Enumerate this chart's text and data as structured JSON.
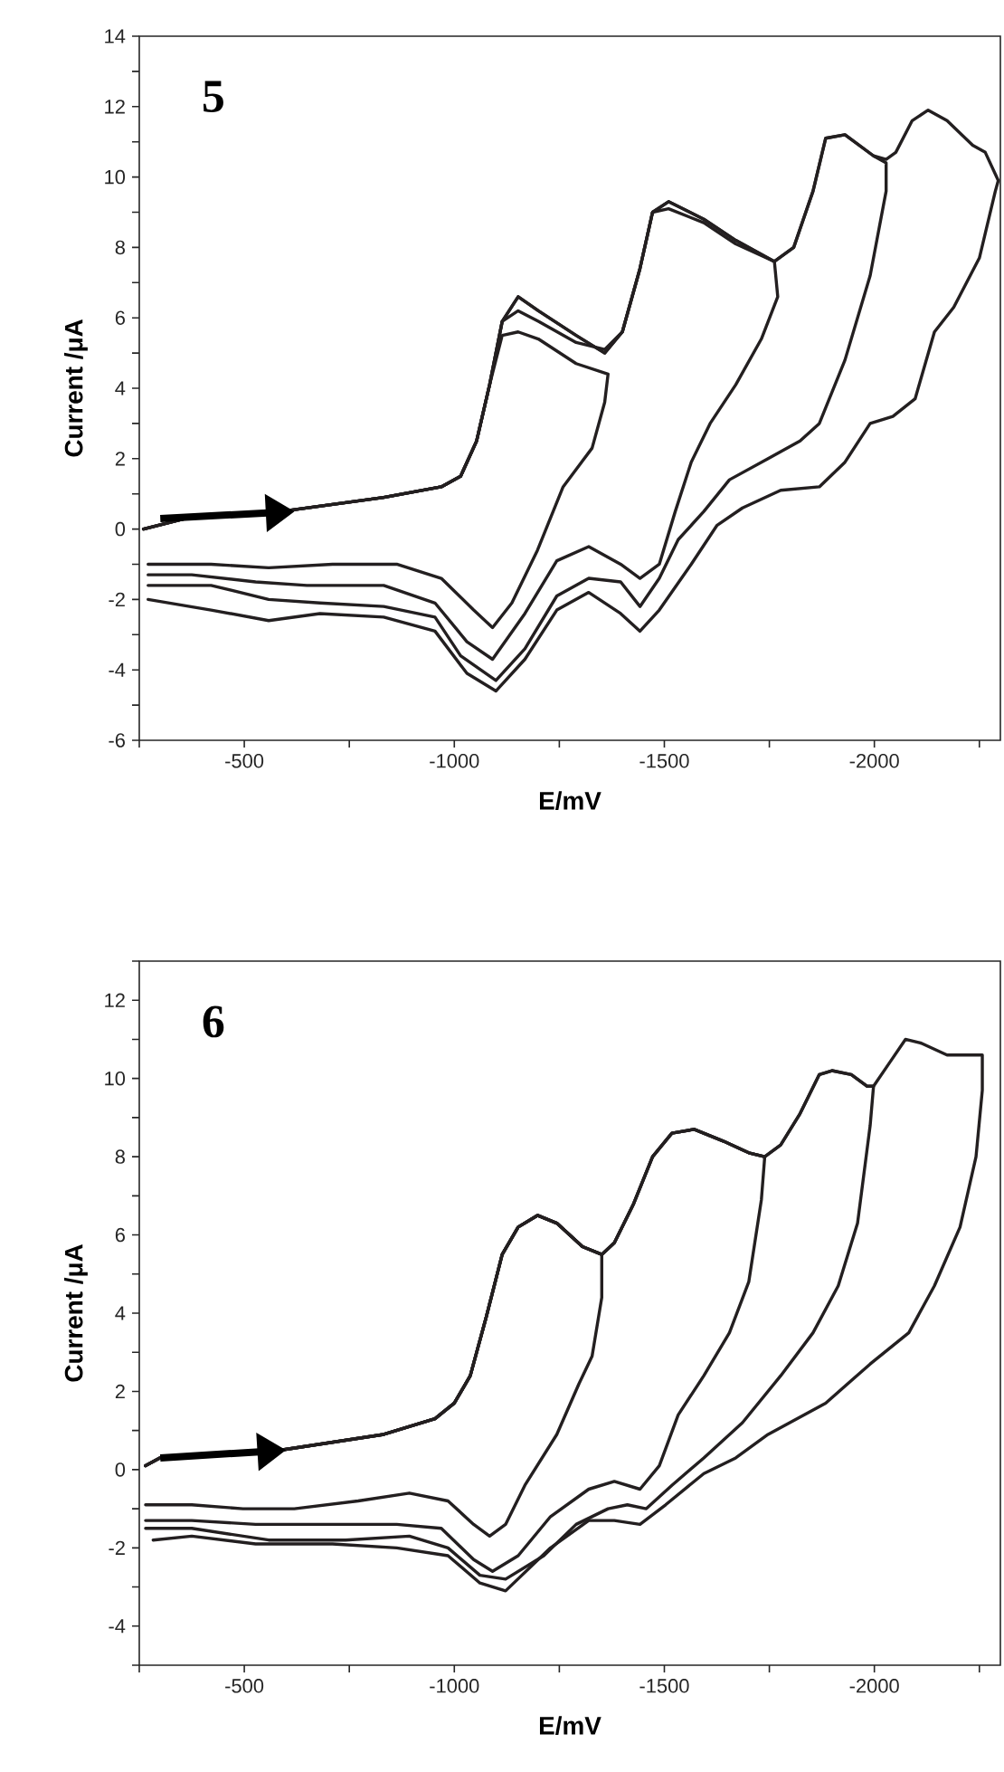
{
  "chart_data": [
    {
      "type": "line",
      "title": "5",
      "xlabel": "E/mV",
      "ylabel": "Current /μA",
      "xlim": [
        -250,
        -2300
      ],
      "ylim": [
        -6,
        14
      ],
      "xticks": [
        {
          "value": -250,
          "label": null
        },
        -500,
        {
          "value": -750,
          "label": null
        },
        -1000,
        {
          "value": -1250,
          "label": null
        },
        -1500,
        {
          "value": -1750,
          "label": null
        },
        -2000,
        {
          "value": -2250,
          "label": null
        }
      ],
      "yticks": [
        -6,
        {
          "value": -5,
          "label": null
        },
        -4,
        {
          "value": -3,
          "label": null
        },
        -2,
        {
          "value": -1,
          "label": null
        },
        0,
        {
          "value": 1,
          "label": null
        },
        2,
        {
          "value": 3,
          "label": null
        },
        4,
        {
          "value": 5,
          "label": null
        },
        6,
        {
          "value": 7,
          "label": null
        },
        8,
        {
          "value": 9,
          "label": null
        },
        10,
        {
          "value": 11,
          "label": null
        },
        12,
        {
          "value": 13,
          "label": null
        },
        14
      ],
      "series": [
        {
          "color": "#231f20",
          "x": [
            -260,
            -360,
            -588,
            -832,
            -969,
            -1015,
            -1053,
            -1084,
            -1114,
            -1152,
            -1200,
            -1290,
            -1366,
            -1358,
            -1328,
            -1259,
            -1198,
            -1137,
            -1091,
            -1046,
            -969,
            -863,
            -710,
            -558,
            -421,
            -271
          ],
          "values": [
            0,
            0.3,
            0.5,
            0.9,
            1.2,
            1.5,
            2.5,
            4.1,
            5.5,
            5.6,
            5.4,
            4.7,
            4.4,
            3.6,
            2.3,
            1.2,
            -0.6,
            -2.1,
            -2.8,
            -2.3,
            -1.4,
            -1.0,
            -1.0,
            -1.1,
            -1.0,
            -1.0
          ]
        },
        {
          "color": "#231f20",
          "x": [
            -260,
            -360,
            -588,
            -832,
            -969,
            -1015,
            -1053,
            -1084,
            -1114,
            -1152,
            -1200,
            -1290,
            -1358,
            -1400,
            -1442,
            -1472,
            -1510,
            -1594,
            -1670,
            -1762,
            -1770,
            -1731,
            -1670,
            -1609,
            -1564,
            -1526,
            -1488,
            -1442,
            -1396,
            -1320,
            -1244,
            -1168,
            -1091,
            -1030,
            -954,
            -832,
            -649,
            -527,
            -375,
            -271
          ],
          "values": [
            0,
            0.3,
            0.5,
            0.9,
            1.2,
            1.5,
            2.5,
            4.1,
            5.9,
            6.2,
            5.9,
            5.3,
            5.1,
            5.6,
            7.4,
            9.0,
            9.1,
            8.7,
            8.1,
            7.6,
            6.6,
            5.4,
            4.1,
            3.0,
            1.9,
            0.5,
            -1.0,
            -1.4,
            -1.0,
            -0.5,
            -0.9,
            -2.4,
            -3.7,
            -3.2,
            -2.1,
            -1.6,
            -1.6,
            -1.5,
            -1.3,
            -1.3
          ]
        },
        {
          "color": "#231f20",
          "x": [
            -260,
            -360,
            -588,
            -832,
            -969,
            -1015,
            -1053,
            -1084,
            -1114,
            -1152,
            -1200,
            -1290,
            -1358,
            -1400,
            -1442,
            -1472,
            -1510,
            -1594,
            -1670,
            -1762,
            -1808,
            -1854,
            -1884,
            -1930,
            -1998,
            -2028,
            -2028,
            -1990,
            -1930,
            -1869,
            -1823,
            -1747,
            -1655,
            -1594,
            -1533,
            -1488,
            -1442,
            -1396,
            -1320,
            -1244,
            -1168,
            -1099,
            -1015,
            -954,
            -832,
            -680,
            -558,
            -421,
            -271
          ],
          "values": [
            0,
            0.3,
            0.5,
            0.9,
            1.2,
            1.5,
            2.5,
            4.1,
            5.9,
            6.6,
            6.2,
            5.5,
            5.0,
            5.6,
            7.4,
            9.0,
            9.3,
            8.8,
            8.2,
            7.6,
            8.0,
            9.6,
            11.1,
            11.2,
            10.6,
            10.4,
            9.6,
            7.2,
            4.8,
            3.0,
            2.5,
            2.0,
            1.4,
            0.5,
            -0.3,
            -1.4,
            -2.2,
            -1.5,
            -1.4,
            -1.9,
            -3.4,
            -4.3,
            -3.6,
            -2.5,
            -2.2,
            -2.1,
            -2.0,
            -1.6,
            -1.6
          ]
        },
        {
          "color": "#231f20",
          "x": [
            -260,
            -360,
            -588,
            -832,
            -969,
            -1015,
            -1053,
            -1084,
            -1114,
            -1152,
            -1200,
            -1290,
            -1358,
            -1400,
            -1442,
            -1472,
            -1510,
            -1594,
            -1670,
            -1762,
            -1808,
            -1854,
            -1884,
            -1930,
            -1998,
            -2028,
            -2051,
            -2090,
            -2128,
            -2173,
            -2234,
            -2264,
            -2295,
            -2288,
            -2250,
            -2189,
            -2143,
            -2097,
            -2044,
            -1990,
            -1930,
            -1869,
            -1777,
            -1686,
            -1625,
            -1564,
            -1488,
            -1442,
            -1396,
            -1320,
            -1244,
            -1168,
            -1099,
            -1030,
            -954,
            -832,
            -680,
            -558,
            -421,
            -271
          ],
          "values": [
            0,
            0.3,
            0.5,
            0.9,
            1.2,
            1.5,
            2.5,
            4.1,
            5.9,
            6.6,
            6.2,
            5.5,
            5.0,
            5.6,
            7.4,
            9.0,
            9.3,
            8.8,
            8.2,
            7.6,
            8.0,
            9.6,
            11.1,
            11.2,
            10.6,
            10.5,
            10.7,
            11.6,
            11.9,
            11.6,
            10.9,
            10.7,
            9.9,
            9.6,
            7.7,
            6.3,
            5.6,
            3.7,
            3.2,
            3.0,
            1.9,
            1.2,
            1.1,
            0.6,
            0.1,
            -1.0,
            -2.3,
            -2.9,
            -2.4,
            -1.8,
            -2.3,
            -3.7,
            -4.6,
            -4.1,
            -2.9,
            -2.5,
            -2.4,
            -2.6,
            -2.3,
            -2.0
          ]
        }
      ]
    },
    {
      "type": "line",
      "title": "6",
      "xlabel": "E/mV",
      "ylabel": "Current /μA",
      "xlim": [
        -250,
        -2300
      ],
      "ylim": [
        -5,
        13
      ],
      "xticks": [
        {
          "value": -250,
          "label": null
        },
        -500,
        {
          "value": -750,
          "label": null
        },
        -1000,
        {
          "value": -1250,
          "label": null
        },
        -1500,
        {
          "value": -1750,
          "label": null
        },
        -2000,
        {
          "value": -2250,
          "label": null
        }
      ],
      "yticks": [
        {
          "value": -5,
          "label": null
        },
        -4,
        {
          "value": -3,
          "label": null
        },
        -2,
        {
          "value": -1,
          "label": null
        },
        0,
        {
          "value": 1,
          "label": null
        },
        2,
        {
          "value": 3,
          "label": null
        },
        4,
        {
          "value": 5,
          "label": null
        },
        6,
        {
          "value": 7,
          "label": null
        },
        8,
        {
          "value": 9,
          "label": null
        },
        10,
        {
          "value": 11,
          "label": null
        },
        12,
        {
          "value": 13,
          "label": null
        }
      ],
      "series": [
        {
          "color": "#231f20",
          "x": [
            -265,
            -299,
            -588,
            -832,
            -954,
            -1000,
            -1038,
            -1076,
            -1114,
            -1152,
            -1198,
            -1244,
            -1305,
            -1351,
            -1351,
            -1328,
            -1297,
            -1244,
            -1168,
            -1122,
            -1084,
            -1046,
            -985,
            -893,
            -771,
            -619,
            -497,
            -375,
            -265
          ],
          "values": [
            0.1,
            0.3,
            0.5,
            0.9,
            1.3,
            1.7,
            2.4,
            3.9,
            5.5,
            6.2,
            6.5,
            6.3,
            5.7,
            5.5,
            4.4,
            2.9,
            2.2,
            0.9,
            -0.4,
            -1.4,
            -1.7,
            -1.4,
            -0.8,
            -0.6,
            -0.8,
            -1.0,
            -1.0,
            -0.9,
            -0.9
          ]
        },
        {
          "color": "#231f20",
          "x": [
            -265,
            -299,
            -588,
            -832,
            -954,
            -1000,
            -1038,
            -1076,
            -1114,
            -1152,
            -1198,
            -1244,
            -1305,
            -1351,
            -1381,
            -1427,
            -1472,
            -1518,
            -1571,
            -1640,
            -1701,
            -1739,
            -1731,
            -1701,
            -1655,
            -1594,
            -1533,
            -1488,
            -1442,
            -1381,
            -1320,
            -1229,
            -1152,
            -1091,
            -1046,
            -969,
            -863,
            -710,
            -527,
            -375,
            -265
          ],
          "values": [
            0.1,
            0.3,
            0.5,
            0.9,
            1.3,
            1.7,
            2.4,
            3.9,
            5.5,
            6.2,
            6.5,
            6.3,
            5.7,
            5.5,
            5.8,
            6.8,
            8.0,
            8.6,
            8.7,
            8.4,
            8.1,
            8.0,
            6.9,
            4.8,
            3.5,
            2.4,
            1.4,
            0.1,
            -0.5,
            -0.3,
            -0.5,
            -1.2,
            -2.2,
            -2.6,
            -2.3,
            -1.5,
            -1.4,
            -1.4,
            -1.4,
            -1.3,
            -1.3
          ]
        },
        {
          "color": "#231f20",
          "x": [
            -265,
            -299,
            -588,
            -832,
            -954,
            -1000,
            -1038,
            -1076,
            -1114,
            -1152,
            -1198,
            -1244,
            -1305,
            -1351,
            -1381,
            -1427,
            -1472,
            -1518,
            -1571,
            -1640,
            -1701,
            -1739,
            -1777,
            -1823,
            -1869,
            -1899,
            -1945,
            -1983,
            -1998,
            -1990,
            -1960,
            -1914,
            -1854,
            -1777,
            -1686,
            -1594,
            -1518,
            -1457,
            -1412,
            -1366,
            -1290,
            -1213,
            -1122,
            -1061,
            -985,
            -893,
            -741,
            -558,
            -375,
            -265
          ],
          "values": [
            0.1,
            0.3,
            0.5,
            0.9,
            1.3,
            1.7,
            2.4,
            3.9,
            5.5,
            6.2,
            6.5,
            6.3,
            5.7,
            5.5,
            5.8,
            6.8,
            8.0,
            8.6,
            8.7,
            8.4,
            8.1,
            8.0,
            8.3,
            9.1,
            10.1,
            10.2,
            10.1,
            9.8,
            9.8,
            8.8,
            6.3,
            4.7,
            3.5,
            2.4,
            1.2,
            0.3,
            -0.4,
            -1.0,
            -0.9,
            -1.0,
            -1.4,
            -2.2,
            -2.8,
            -2.7,
            -2.0,
            -1.7,
            -1.8,
            -1.8,
            -1.5,
            -1.5
          ]
        },
        {
          "color": "#231f20",
          "x": [
            -265,
            -299,
            -588,
            -832,
            -954,
            -1000,
            -1038,
            -1076,
            -1114,
            -1152,
            -1198,
            -1244,
            -1305,
            -1351,
            -1381,
            -1427,
            -1472,
            -1518,
            -1571,
            -1640,
            -1701,
            -1739,
            -1777,
            -1823,
            -1869,
            -1899,
            -1945,
            -1983,
            -1998,
            -2036,
            -2074,
            -2112,
            -2173,
            -2219,
            -2257,
            -2257,
            -2242,
            -2204,
            -2143,
            -2082,
            -1990,
            -1884,
            -1747,
            -1670,
            -1594,
            -1503,
            -1442,
            -1381,
            -1320,
            -1229,
            -1122,
            -1061,
            -985,
            -863,
            -710,
            -527,
            -375,
            -283
          ],
          "values": [
            0.1,
            0.3,
            0.5,
            0.9,
            1.3,
            1.7,
            2.4,
            3.9,
            5.5,
            6.2,
            6.5,
            6.3,
            5.7,
            5.5,
            5.8,
            6.8,
            8.0,
            8.6,
            8.7,
            8.4,
            8.1,
            8.0,
            8.3,
            9.1,
            10.1,
            10.2,
            10.1,
            9.8,
            9.8,
            10.4,
            11.0,
            10.9,
            10.6,
            10.6,
            10.6,
            9.7,
            8.0,
            6.2,
            4.7,
            3.5,
            2.7,
            1.7,
            0.9,
            0.3,
            -0.1,
            -0.9,
            -1.4,
            -1.3,
            -1.3,
            -2.0,
            -3.1,
            -2.9,
            -2.2,
            -2.0,
            -1.9,
            -1.9,
            -1.7,
            -1.8
          ]
        }
      ]
    }
  ]
}
